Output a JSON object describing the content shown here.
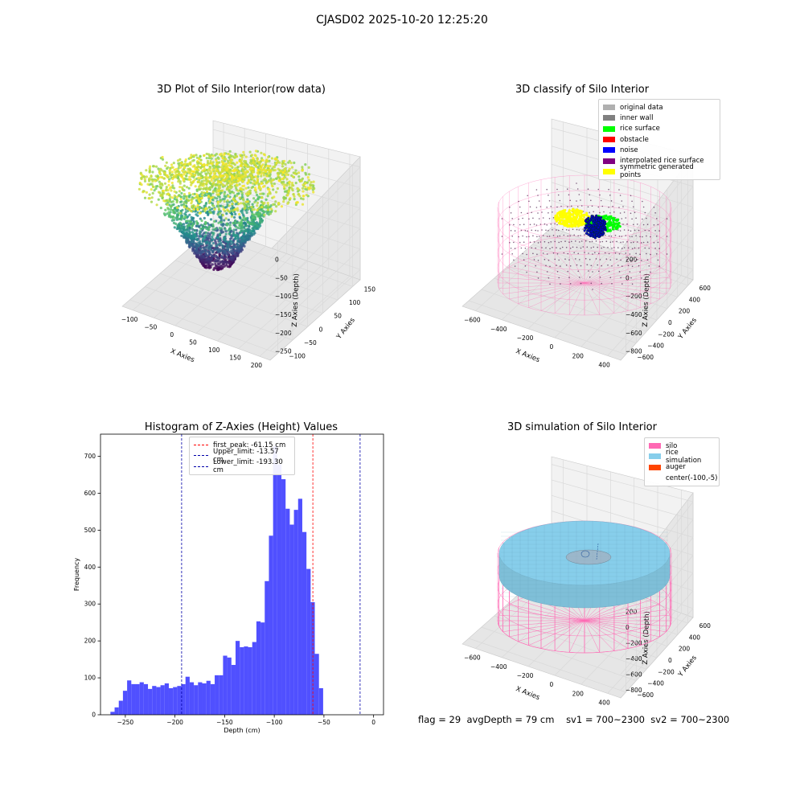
{
  "suptitle": "CJASD02 2025-10-20 12:25:20",
  "status": {
    "flag": "flag = 29",
    "avg": "avgDepth = 79 cm",
    "sv1": "sv1 = 700~2300",
    "sv2": "sv2 = 700~2300"
  },
  "chart_data": [
    {
      "type": "scatter",
      "title": "3D Plot of Silo Interior(row data)",
      "xlabel": "X Axies",
      "ylabel": "Y Axies",
      "zlabel": "Z Axies (Depth)",
      "x_ticks": [
        "−100",
        "−50",
        "0",
        "50",
        "100",
        "150",
        "200"
      ],
      "y_ticks": [
        "−100",
        "−50",
        "0",
        "50",
        "100",
        "150"
      ],
      "z_ticks": [
        "0",
        "−50",
        "−100",
        "−150",
        "−200",
        "−250"
      ],
      "xlim": [
        -120,
        210
      ],
      "ylim": [
        -120,
        160
      ],
      "zlim": [
        -270,
        10
      ],
      "colormap": "viridis",
      "colors": [
        "#440154",
        "#3b528b",
        "#21908c",
        "#5dc863",
        "#fde725"
      ]
    },
    {
      "type": "scatter",
      "title": "3D classify of Silo Interior",
      "xlabel": "X Axies",
      "ylabel": "Y Axies",
      "zlabel": "Z Axies (Depth)",
      "x_ticks": [
        "−600",
        "−400",
        "−200",
        "0",
        "200",
        "400"
      ],
      "y_ticks": [
        "−600",
        "−400",
        "−200",
        "0",
        "200",
        "400",
        "600"
      ],
      "z_ticks": [
        "200",
        "0",
        "−200",
        "−400",
        "−600",
        "−800"
      ],
      "legend": [
        {
          "label": "original data",
          "color": "#b0b0b0"
        },
        {
          "label": "inner wall",
          "color": "#808080"
        },
        {
          "label": "rice surface",
          "color": "#00ff00"
        },
        {
          "label": "obstacle",
          "color": "#ff0000"
        },
        {
          "label": "noise",
          "color": "#0000ff"
        },
        {
          "label": "interpolated rice surface",
          "color": "#800080"
        },
        {
          "label": "symmetric generated points",
          "color": "#ffff00"
        }
      ],
      "wire_color": "#ff69b4"
    },
    {
      "type": "bar",
      "title": "Histogram of Z-Axies (Height) Values",
      "xlabel": "Depth (cm)",
      "ylabel": "Frequency",
      "xlim": [
        -275,
        10
      ],
      "ylim": [
        0,
        760
      ],
      "x_ticks": [
        -250,
        -200,
        -150,
        -100,
        -50,
        0
      ],
      "y_ticks": [
        0,
        100,
        200,
        300,
        400,
        500,
        600,
        700
      ],
      "bin_start": -265,
      "bin_width": 4.2,
      "bar_color": "#4d4dff",
      "values": [
        8,
        20,
        38,
        65,
        93,
        83,
        83,
        88,
        83,
        70,
        78,
        75,
        80,
        85,
        72,
        75,
        78,
        83,
        103,
        88,
        80,
        88,
        85,
        92,
        83,
        107,
        107,
        160,
        155,
        135,
        200,
        183,
        185,
        183,
        197,
        253,
        250,
        362,
        485,
        728,
        678,
        638,
        558,
        515,
        555,
        585,
        495,
        395,
        305,
        165,
        72
      ],
      "vlines": [
        {
          "x": -61.15,
          "color": "#ff0000",
          "label": "first_peak: -61.15 cm"
        },
        {
          "x": -13.57,
          "color": "#0000aa",
          "label": "Upper_limit: -13.57 cm"
        },
        {
          "x": -193.3,
          "color": "#0000aa",
          "label": "Lower_limit: -193.30 cm"
        }
      ],
      "legend_position": "top-center"
    },
    {
      "type": "scatter",
      "title": "3D simulation of Silo Interior",
      "xlabel": "X Axies",
      "ylabel": "Y Axies",
      "zlabel": "Z Axies (Depth)",
      "x_ticks": [
        "−600",
        "−400",
        "−200",
        "0",
        "200",
        "400"
      ],
      "y_ticks": [
        "−600",
        "−400",
        "−200",
        "0",
        "200",
        "400",
        "600"
      ],
      "z_ticks": [
        "400",
        "200",
        "0",
        "−200",
        "−400",
        "−600",
        "−800"
      ],
      "legend": [
        {
          "label": "silo",
          "color": "#ff69b4"
        },
        {
          "label": "rice simulation",
          "color": "#87ceeb"
        },
        {
          "label": "auger",
          "color": "#ff4500"
        },
        {
          "label": "center(-100,-5)",
          "color": ""
        }
      ],
      "surface_color": "#87ceeb",
      "wire_color": "#ff69b4"
    }
  ]
}
